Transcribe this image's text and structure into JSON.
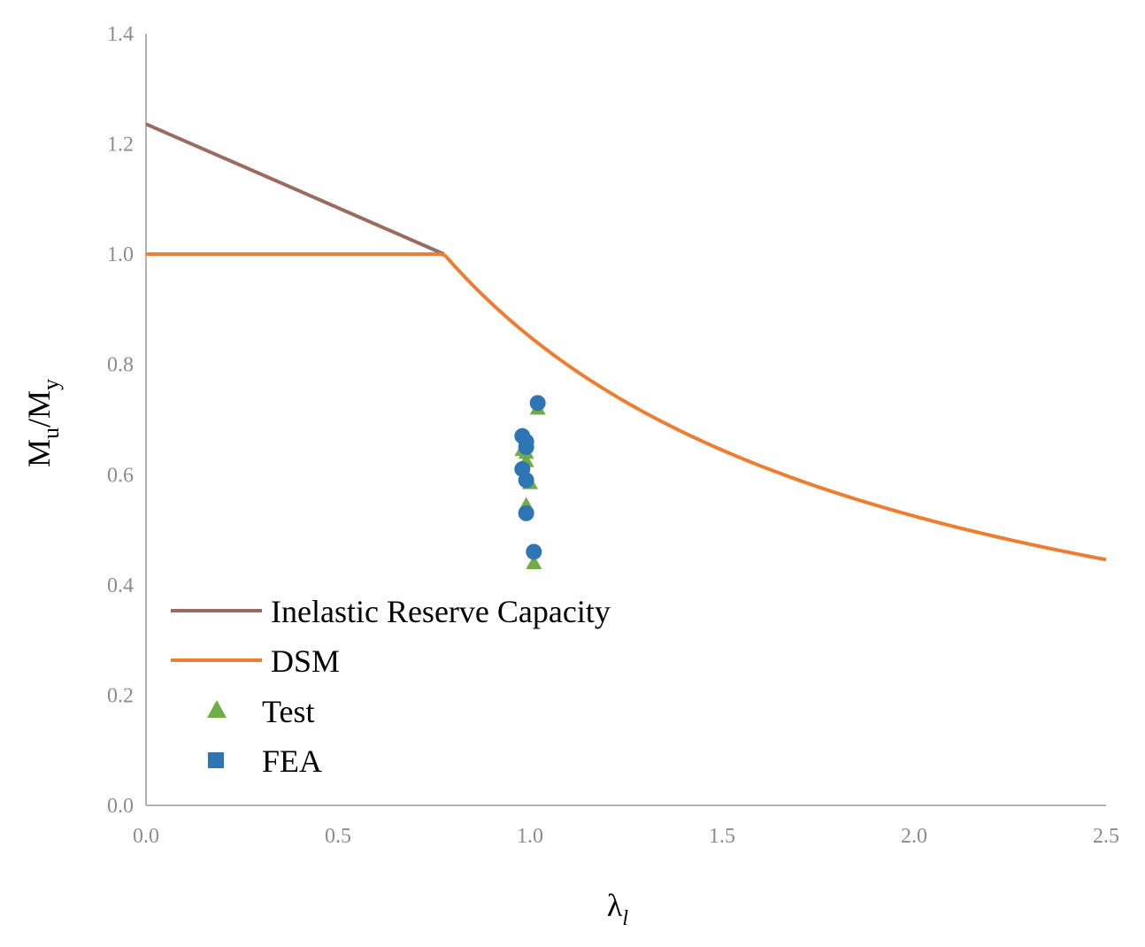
{
  "chart_data": {
    "type": "scatter",
    "title": "",
    "xlabel": {
      "main": "λ",
      "sub": "l"
    },
    "ylabel": {
      "m1": "M",
      "sub1": "u",
      "slash": "/",
      "m2": "M",
      "sub2": "y"
    },
    "xlim": [
      0,
      2.5
    ],
    "ylim": [
      0,
      1.4
    ],
    "xticks": [
      0.0,
      0.5,
      1.0,
      1.5,
      2.0,
      2.5
    ],
    "yticks": [
      0.0,
      0.2,
      0.4,
      0.6,
      0.8,
      1.0,
      1.2,
      1.4
    ],
    "xtick_labels": [
      "0.0",
      "0.5",
      "1.0",
      "1.5",
      "2.0",
      "2.5"
    ],
    "ytick_labels": [
      "0.0",
      "0.2",
      "0.4",
      "0.6",
      "0.8",
      "1.0",
      "1.2",
      "1.4"
    ],
    "grid": false,
    "legend_position": "bottom-left",
    "series": [
      {
        "name": "Inelastic Reserve Capacity",
        "kind": "line",
        "color": "#9b6b5f",
        "x": [
          0.0,
          0.776
        ],
        "y": [
          1.236,
          1.0
        ]
      },
      {
        "name": "DSM",
        "kind": "line",
        "color": "#ed7d31",
        "formula": "y = 1 for x <= 0.776; y = (1 - 0.15 / x^0.8) / x^0.8 otherwise",
        "x_range": [
          0.0,
          2.5
        ]
      },
      {
        "name": "Test",
        "kind": "scatter",
        "marker": "triangle",
        "color": "#70ad47",
        "x": [
          1.02,
          0.98,
          0.99,
          0.99,
          1.0,
          0.99,
          1.01
        ],
        "y": [
          0.72,
          0.645,
          0.64,
          0.625,
          0.585,
          0.545,
          0.44
        ]
      },
      {
        "name": "FEA",
        "kind": "scatter",
        "marker": "circle",
        "legend_marker": "square",
        "color": "#2e75b6",
        "x": [
          1.02,
          0.98,
          0.99,
          0.99,
          0.98,
          0.99,
          0.99,
          1.01
        ],
        "y": [
          0.73,
          0.67,
          0.66,
          0.65,
          0.61,
          0.59,
          0.53,
          0.46
        ]
      }
    ]
  }
}
